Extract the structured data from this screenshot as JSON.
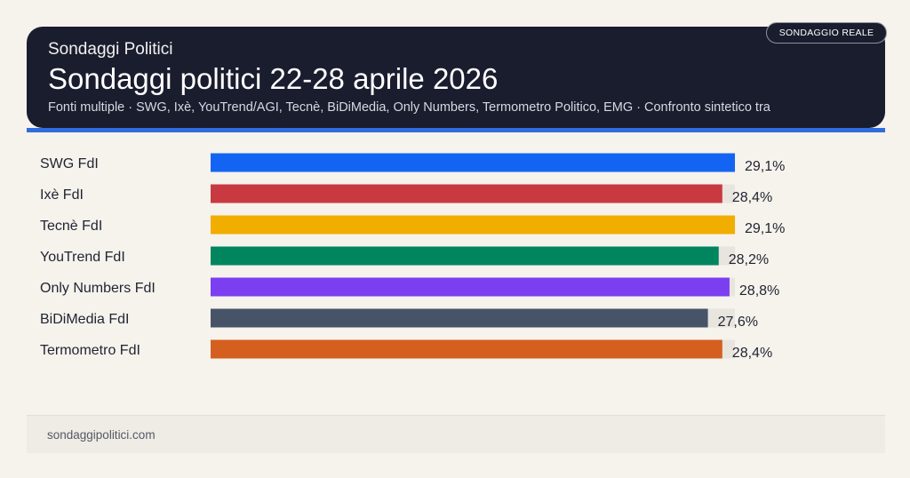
{
  "header": {
    "kicker": "Sondaggi Politici",
    "title": "Sondaggi politici 22-28 aprile 2026",
    "sources": "Fonti multiple · SWG, Ixè, YouTrend/AGI, Tecnè, BiDiMedia, Only Numbers, Termometro Politico, EMG · Confronto sintetico tra",
    "badge": "SONDAGGIO REALE"
  },
  "footer": {
    "site": "sondaggipolitici.com"
  },
  "colors": {
    "header_bg": "#1a1d2e",
    "accent": "#2f6ddf",
    "track": "#e8e4de"
  },
  "chart_data": {
    "type": "bar",
    "orientation": "horizontal",
    "categories": [
      "SWG FdI",
      "Ixè FdI",
      "Tecnè FdI",
      "YouTrend FdI",
      "Only Numbers FdI",
      "BiDiMedia FdI",
      "Termometro FdI"
    ],
    "values": [
      29.1,
      28.4,
      29.1,
      28.2,
      28.8,
      27.6,
      28.4
    ],
    "value_labels": [
      "29,1%",
      "28,4%",
      "29,1%",
      "28,2%",
      "28,8%",
      "27,6%",
      "28,4%"
    ],
    "colors": [
      "#1464f4",
      "#c83a40",
      "#f1ad00",
      "#00855f",
      "#7b3ef0",
      "#475468",
      "#d45f1e"
    ],
    "xlim": [
      0,
      29.1
    ],
    "title": "",
    "xlabel": "",
    "ylabel": ""
  }
}
